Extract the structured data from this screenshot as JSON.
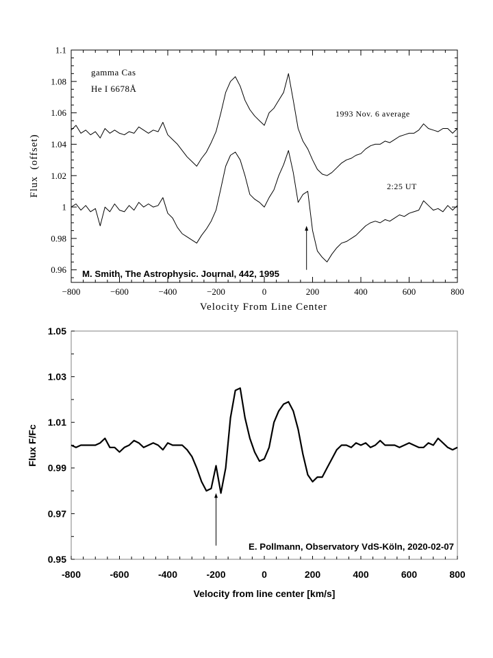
{
  "chart_data": [
    {
      "type": "line",
      "title": "",
      "xlabel": "Velocity From Line Center",
      "ylabel": "Flux  (offset)",
      "xlim": [
        -800,
        800
      ],
      "ylim": [
        0.952,
        1.1
      ],
      "xticks": [
        -800,
        -600,
        -400,
        -200,
        0,
        200,
        400,
        600,
        800
      ],
      "xtick_labels": [
        "−800",
        "−600",
        "−400",
        "−200",
        "0",
        "200",
        "400",
        "600",
        "800"
      ],
      "yticks": [
        0.96,
        0.98,
        1,
        1.02,
        1.04,
        1.06,
        1.08,
        1.1
      ],
      "ytick_labels": [
        "0.96",
        "0.98",
        "1",
        "1.02",
        "1.04",
        "1.06",
        "1.08",
        "1.1"
      ],
      "grid": false,
      "annotations": {
        "object": "gamma Cas",
        "line": "He I 6678Å",
        "credit": "M. Smith, The Astrophysic. Journal, 442, 1995",
        "arrow_x": 175
      },
      "x": [
        -800,
        -780,
        -760,
        -740,
        -720,
        -700,
        -680,
        -660,
        -640,
        -620,
        -600,
        -580,
        -560,
        -540,
        -520,
        -500,
        -480,
        -460,
        -440,
        -420,
        -400,
        -380,
        -360,
        -340,
        -320,
        -300,
        -280,
        -260,
        -240,
        -220,
        -200,
        -180,
        -160,
        -140,
        -120,
        -100,
        -80,
        -60,
        -40,
        -20,
        0,
        20,
        40,
        60,
        80,
        100,
        120,
        140,
        160,
        180,
        200,
        220,
        240,
        260,
        280,
        300,
        320,
        340,
        360,
        380,
        400,
        420,
        440,
        460,
        480,
        500,
        520,
        540,
        560,
        580,
        600,
        620,
        640,
        660,
        680,
        700,
        720,
        740,
        760,
        780,
        800
      ],
      "series": [
        {
          "name": "1993 Nov. 6 average",
          "values": [
            1.049,
            1.052,
            1.047,
            1.049,
            1.046,
            1.048,
            1.044,
            1.05,
            1.047,
            1.049,
            1.047,
            1.046,
            1.048,
            1.047,
            1.051,
            1.049,
            1.047,
            1.049,
            1.048,
            1.054,
            1.046,
            1.043,
            1.04,
            1.036,
            1.032,
            1.029,
            1.026,
            1.031,
            1.035,
            1.041,
            1.048,
            1.06,
            1.073,
            1.08,
            1.083,
            1.077,
            1.068,
            1.062,
            1.058,
            1.055,
            1.052,
            1.06,
            1.063,
            1.068,
            1.073,
            1.085,
            1.068,
            1.05,
            1.042,
            1.037,
            1.03,
            1.024,
            1.021,
            1.02,
            1.022,
            1.025,
            1.028,
            1.03,
            1.031,
            1.033,
            1.034,
            1.037,
            1.039,
            1.04,
            1.04,
            1.042,
            1.041,
            1.043,
            1.045,
            1.046,
            1.047,
            1.047,
            1.049,
            1.053,
            1.05,
            1.049,
            1.048,
            1.05,
            1.05,
            1.047,
            1.05
          ]
        },
        {
          "name": "2:25 UT",
          "values": [
            1.0,
            1.002,
            0.998,
            1.001,
            0.997,
            0.999,
            0.988,
            1.0,
            0.997,
            1.002,
            0.998,
            0.997,
            1.001,
            0.998,
            1.003,
            1.0,
            1.002,
            1.0,
            1.001,
            1.006,
            0.996,
            0.993,
            0.987,
            0.983,
            0.981,
            0.979,
            0.977,
            0.982,
            0.986,
            0.991,
            0.998,
            1.012,
            1.026,
            1.033,
            1.035,
            1.03,
            1.02,
            1.008,
            1.005,
            1.003,
            1.0,
            1.006,
            1.011,
            1.02,
            1.027,
            1.036,
            1.022,
            1.003,
            1.008,
            1.01,
            0.985,
            0.972,
            0.968,
            0.965,
            0.97,
            0.974,
            0.977,
            0.978,
            0.98,
            0.982,
            0.985,
            0.988,
            0.99,
            0.991,
            0.99,
            0.992,
            0.991,
            0.993,
            0.995,
            0.994,
            0.996,
            0.997,
            0.998,
            1.004,
            1.001,
            0.998,
            0.999,
            0.997,
            1.001,
            0.998,
            1.001
          ]
        }
      ]
    },
    {
      "type": "line",
      "title": "",
      "xlabel": "Velocity from line center [km/s]",
      "ylabel": "Flux F/Fc",
      "xlim": [
        -800,
        800
      ],
      "ylim": [
        0.95,
        1.05
      ],
      "xticks": [
        -800,
        -600,
        -400,
        -200,
        0,
        200,
        400,
        600,
        800
      ],
      "xtick_labels": [
        "-800",
        "-600",
        "-400",
        "-200",
        "0",
        "200",
        "400",
        "600",
        "800"
      ],
      "yticks": [
        0.95,
        0.97,
        0.99,
        1.01,
        1.03,
        1.05
      ],
      "ytick_labels": [
        "0.95",
        "0.97",
        "0.99",
        "1.01",
        "1.03",
        "1.05"
      ],
      "grid": false,
      "annotations": {
        "credit": "E. Pollmann, Observatory VdS-Köln, 2020-02-07",
        "arrow_x": -200
      },
      "x": [
        -800,
        -780,
        -760,
        -740,
        -720,
        -700,
        -680,
        -660,
        -640,
        -620,
        -600,
        -580,
        -560,
        -540,
        -520,
        -500,
        -480,
        -460,
        -440,
        -420,
        -400,
        -380,
        -360,
        -340,
        -320,
        -300,
        -280,
        -260,
        -240,
        -220,
        -200,
        -180,
        -160,
        -140,
        -120,
        -100,
        -80,
        -60,
        -40,
        -20,
        0,
        20,
        40,
        60,
        80,
        100,
        120,
        140,
        160,
        180,
        200,
        220,
        240,
        260,
        280,
        300,
        320,
        340,
        360,
        380,
        400,
        420,
        440,
        460,
        480,
        500,
        520,
        540,
        560,
        580,
        600,
        620,
        640,
        660,
        680,
        700,
        720,
        740,
        760,
        780,
        800
      ],
      "series": [
        {
          "name": "2020-02-07",
          "values": [
            1.0,
            0.999,
            1.0,
            1.0,
            1.0,
            1.0,
            1.001,
            1.003,
            0.999,
            0.999,
            0.997,
            0.999,
            1.0,
            1.002,
            1.001,
            0.999,
            1.0,
            1.001,
            1.0,
            0.998,
            1.001,
            1.0,
            1.0,
            1.0,
            0.998,
            0.995,
            0.99,
            0.984,
            0.98,
            0.981,
            0.991,
            0.979,
            0.99,
            1.012,
            1.024,
            1.025,
            1.012,
            1.003,
            0.997,
            0.993,
            0.994,
            0.999,
            1.01,
            1.015,
            1.018,
            1.019,
            1.015,
            1.007,
            0.996,
            0.987,
            0.984,
            0.986,
            0.986,
            0.99,
            0.994,
            0.998,
            1.0,
            1.0,
            0.999,
            1.001,
            1.0,
            1.001,
            0.999,
            1.0,
            1.002,
            1.0,
            1.0,
            1.0,
            0.999,
            1.0,
            1.001,
            1.0,
            0.999,
            0.999,
            1.001,
            1.0,
            1.003,
            1.001,
            0.999,
            0.998,
            0.999
          ]
        }
      ]
    }
  ]
}
